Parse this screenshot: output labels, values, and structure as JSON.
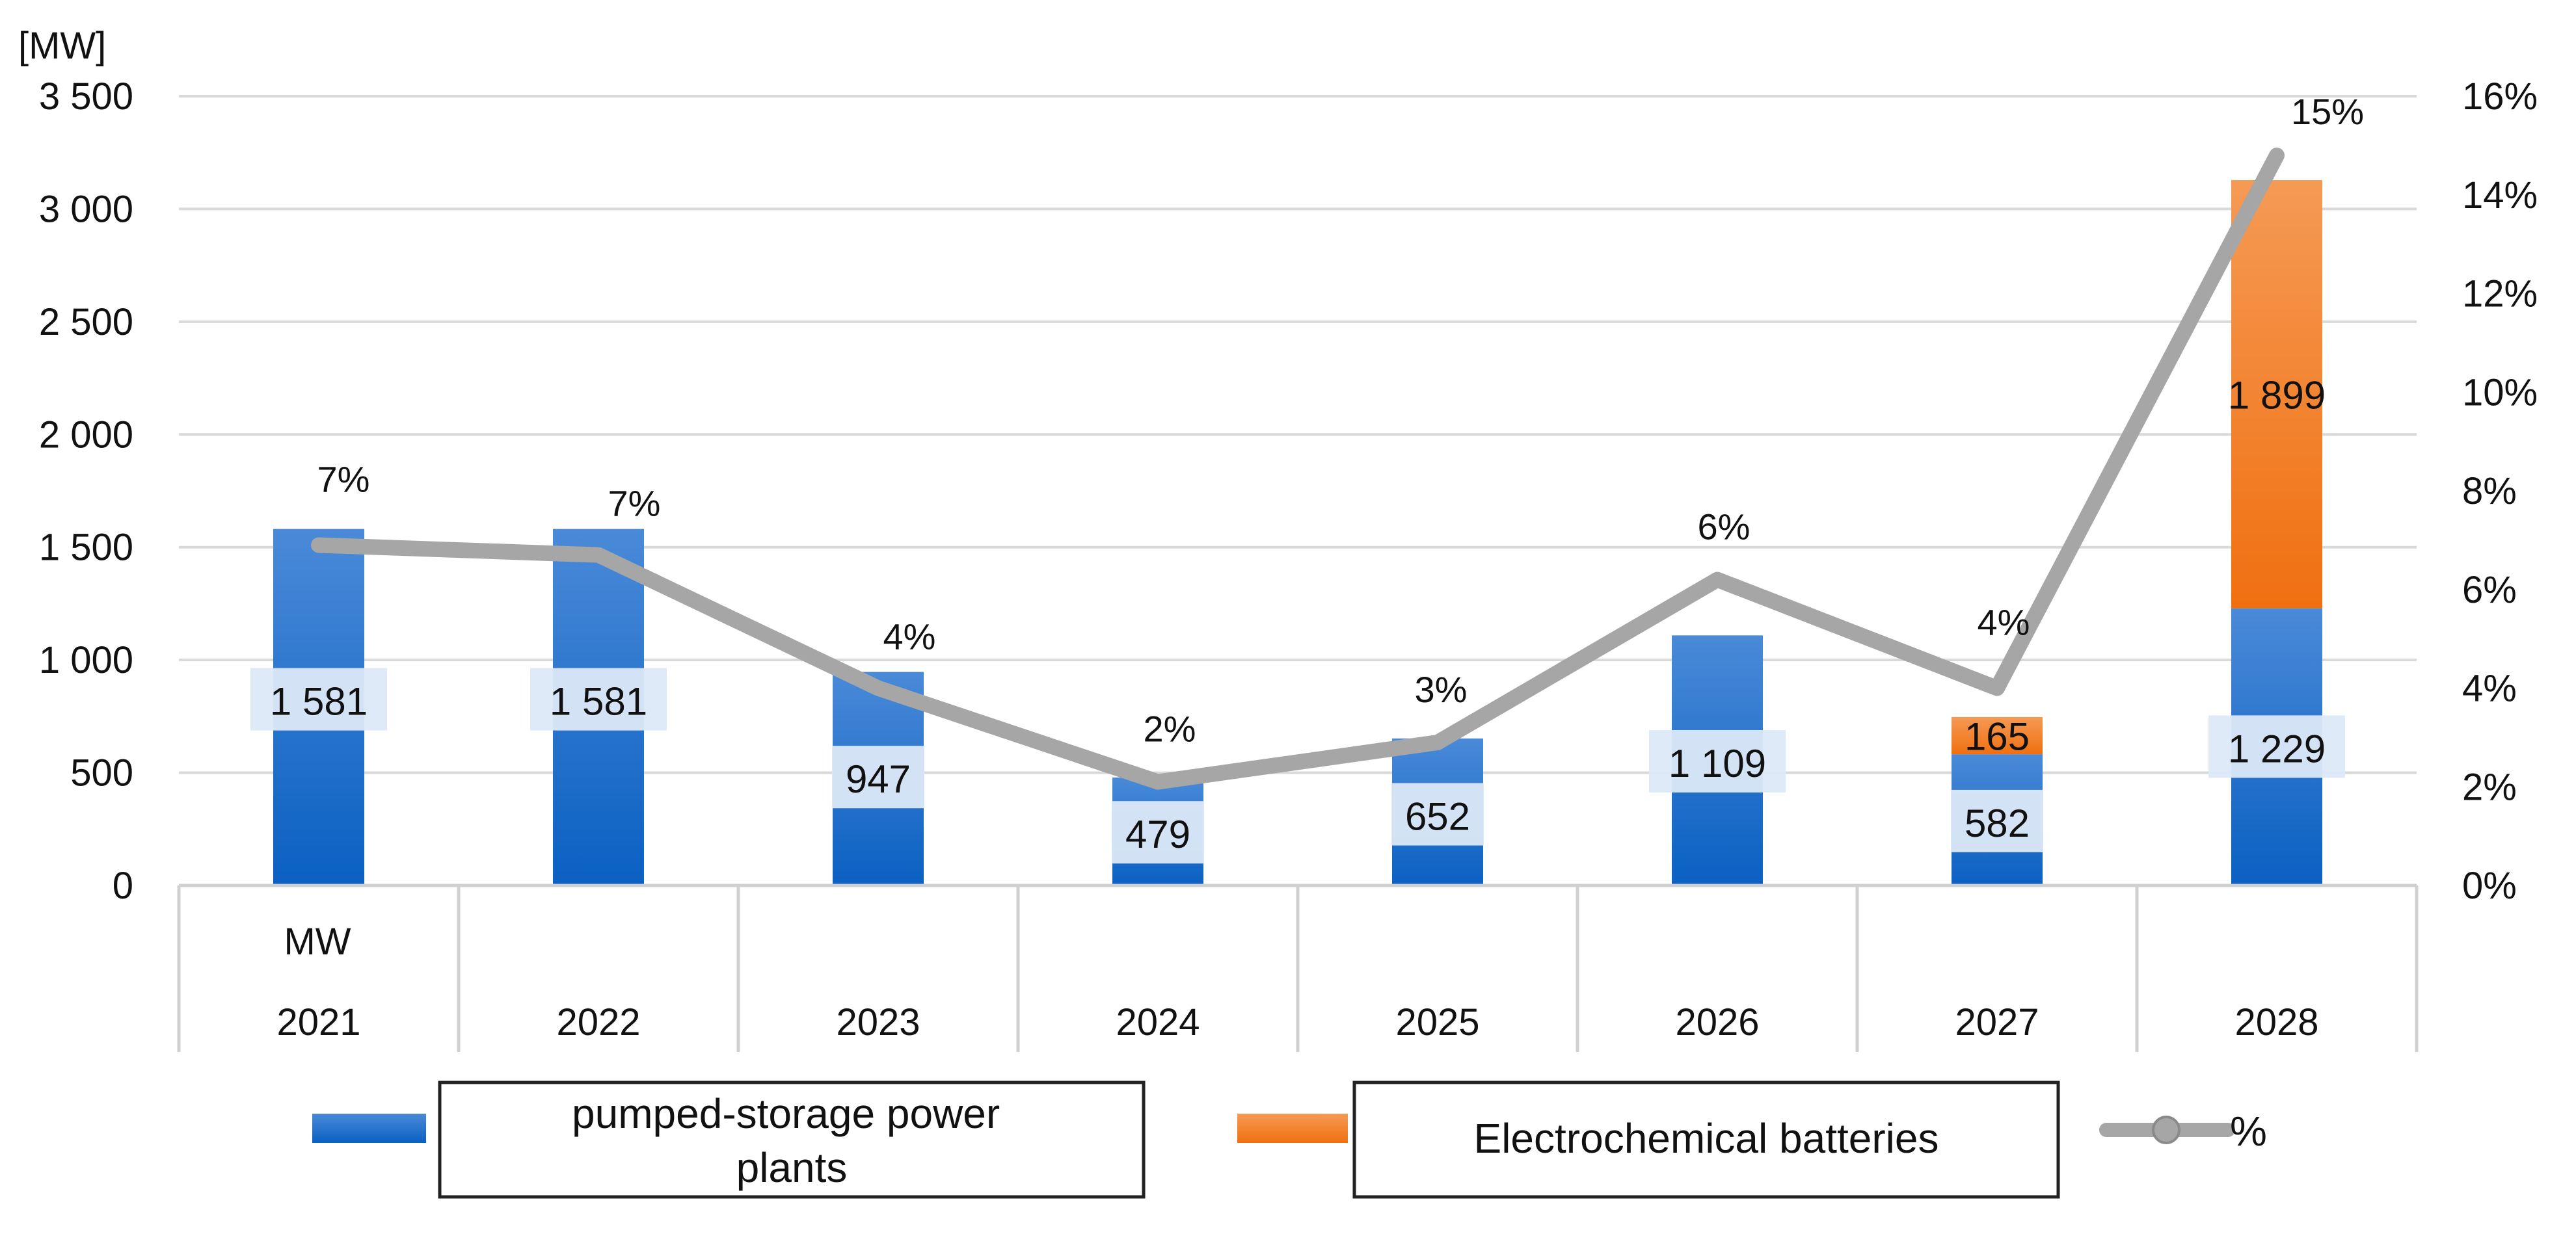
{
  "chart_data": {
    "type": "bar",
    "stacked": true,
    "categories": [
      "2021",
      "2022",
      "2023",
      "2024",
      "2025",
      "2026",
      "2027",
      "2028"
    ],
    "category_row_label": "MW",
    "y_left": {
      "unit_label": "[MW]",
      "min": 0,
      "max": 3500,
      "step": 500,
      "tick_labels": [
        "0",
        "500",
        "1 000",
        "1 500",
        "2 000",
        "2 500",
        "3 000",
        "3 500"
      ]
    },
    "y_right": {
      "min": 0,
      "max": 16,
      "step": 2,
      "tick_labels": [
        "0%",
        "2%",
        "4%",
        "6%",
        "8%",
        "10%",
        "12%",
        "14%",
        "16%"
      ]
    },
    "series": [
      {
        "name": "pumped-storage power plants",
        "kind": "bar",
        "color": "#1565c8",
        "values": [
          1581,
          1581,
          947,
          479,
          652,
          1109,
          582,
          1229
        ],
        "labels": [
          "1 581",
          "1 581",
          "947",
          "479",
          "652",
          "1 109",
          "582",
          "1 229"
        ]
      },
      {
        "name": "Electrochemical batteries",
        "kind": "bar",
        "color": "#f07820",
        "values": [
          0,
          0,
          0,
          0,
          0,
          0,
          165,
          1899
        ],
        "labels": [
          "",
          "",
          "",
          "",
          "",
          "",
          "165",
          "1 899"
        ]
      },
      {
        "name": "%",
        "kind": "line",
        "axis": "right",
        "color": "#a6a6a6",
        "values": [
          6.9,
          6.7,
          4.0,
          2.1,
          2.9,
          6.2,
          4.0,
          14.8
        ],
        "labels": [
          "7%",
          "7%",
          "4%",
          "2%",
          "3%",
          "6%",
          "4%",
          "15%"
        ]
      }
    ],
    "legend": [
      {
        "label": "pumped-storage power plants",
        "color": "#1565c8"
      },
      {
        "label": "Electrochemical batteries",
        "color": "#f07820"
      },
      {
        "label": "%",
        "color": "#a6a6a6"
      }
    ],
    "gridlines": true,
    "legend_position": "bottom"
  }
}
